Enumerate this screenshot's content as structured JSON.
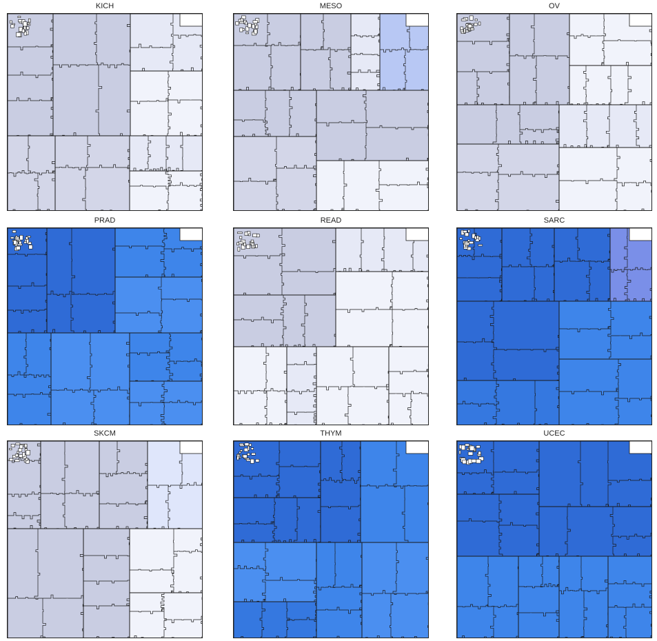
{
  "panels": [
    {
      "title": "KICH",
      "palette": "light"
    },
    {
      "title": "MESO",
      "palette": "light"
    },
    {
      "title": "OV",
      "palette": "light"
    },
    {
      "title": "PRAD",
      "palette": "blue"
    },
    {
      "title": "READ",
      "palette": "light"
    },
    {
      "title": "SARC",
      "palette": "blue"
    },
    {
      "title": "SKCM",
      "palette": "light"
    },
    {
      "title": "THYM",
      "palette": "blue"
    },
    {
      "title": "UCEC",
      "palette": "blue"
    }
  ],
  "colors": {
    "light": [
      "#c9cde2",
      "#d3d6e8",
      "#e6e9f6",
      "#f1f3fb",
      "#dfe6fb",
      "#b8c8f4",
      "#7e98ea"
    ],
    "blue": [
      "#2f6bd6",
      "#3578e0",
      "#3e85ea",
      "#4b8ff0",
      "#6aa0f0",
      "#8fb0f0",
      "#7a8fe8"
    ],
    "outline": "#1a1a1a",
    "inner": "#444444"
  }
}
